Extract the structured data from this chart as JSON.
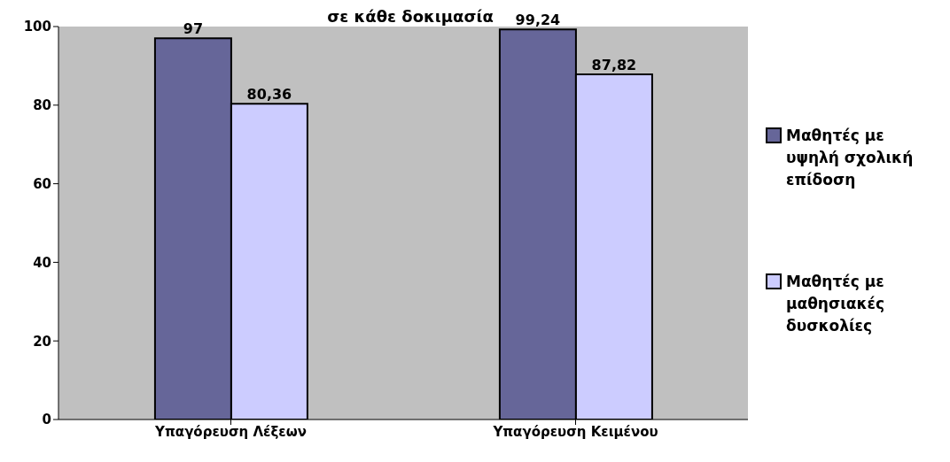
{
  "chart_data": {
    "type": "bar",
    "title": "σε κάθε δοκιμασία",
    "categories": [
      "Υπαγόρευση Λέξεων",
      "Υπαγόρευση Κειμένου"
    ],
    "series": [
      {
        "name": "Μαθητές με υψηλή σχολική επίδοση",
        "color": "#666699",
        "values": [
          97,
          99.24
        ],
        "value_labels": [
          "97",
          "99,24"
        ]
      },
      {
        "name": "Μαθητές με μαθησιακές δυσκολίες",
        "color": "#ccccff",
        "values": [
          80.36,
          87.82
        ],
        "value_labels": [
          "80,36",
          "87,82"
        ]
      }
    ],
    "ylim": [
      0,
      100
    ],
    "yticks": [
      0,
      20,
      40,
      60,
      80,
      100
    ],
    "legend": "right"
  }
}
